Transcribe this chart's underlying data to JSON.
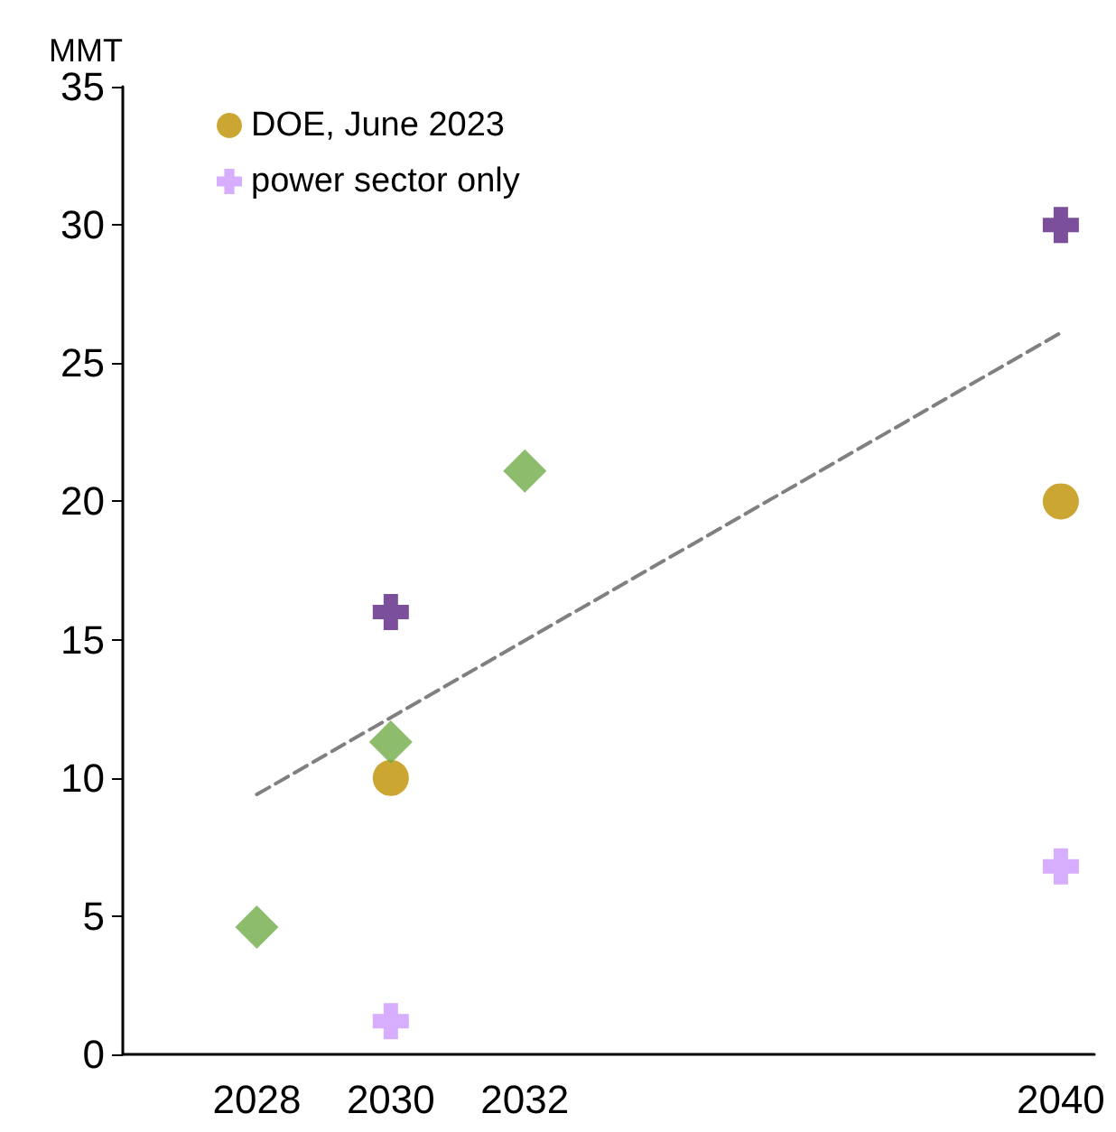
{
  "chart_data": {
    "type": "scatter",
    "ylabel": "MMT",
    "xlim": [
      2026,
      2040.5
    ],
    "xticks": [
      2028,
      2030,
      2032,
      2040
    ],
    "ylim": [
      0,
      35
    ],
    "yticks": [
      0,
      5,
      10,
      15,
      20,
      25,
      30,
      35
    ],
    "grid": false,
    "legend": "top left",
    "series": [
      {
        "name": "DOE, June 2023",
        "color": "#bf9000",
        "marker": "circle",
        "x": [
          2030,
          2040
        ],
        "values": [
          10,
          20
        ]
      },
      {
        "color": "#70ad47",
        "marker": "diamond",
        "x": [
          2028,
          2030,
          2032
        ],
        "values": [
          4.6,
          11.3,
          21.1
        ]
      },
      {
        "color": "#5b2383",
        "marker": "cross",
        "x": [
          2030,
          2040
        ],
        "values": [
          16,
          30
        ]
      },
      {
        "name": "power sector only",
        "color": "#cc99ff",
        "marker": "cross",
        "x": [
          2030,
          2040
        ],
        "values": [
          1.2,
          6.8
        ]
      },
      {
        "type": "line",
        "color": "#808080",
        "line_style": "dashed",
        "marker": "none",
        "x": [
          2028,
          2040
        ],
        "values": [
          9.4,
          26.1
        ]
      }
    ]
  }
}
